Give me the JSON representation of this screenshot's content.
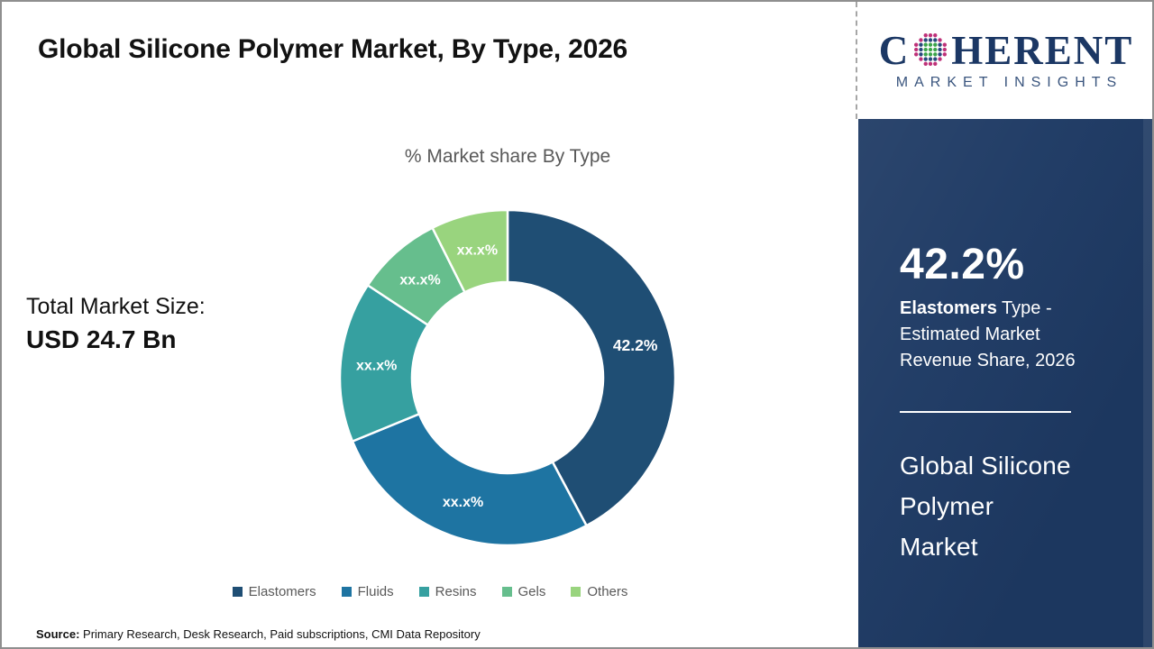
{
  "header": {
    "title": "Global Silicone Polymer Market, By Type, 2026"
  },
  "logo": {
    "name_first_letter": "C",
    "name_rest": "HERENT",
    "subtitle": "MARKET INSIGHTS",
    "navy": "#1b3764",
    "globe_dot_magenta": "#be3078",
    "globe_dot_green": "#3ba44a",
    "globe_dot_blue": "#27497c"
  },
  "chart_data": {
    "type": "pie",
    "subtype": "donut",
    "title": "% Market share By Type",
    "categories": [
      "Elastomers",
      "Fluids",
      "Resins",
      "Gels",
      "Others"
    ],
    "values": [
      42.2,
      26.6,
      15.5,
      8.3,
      7.4
    ],
    "slice_labels": [
      "42.2%",
      "xx.x%",
      "xx.x%",
      "xx.x%",
      "xx.x%"
    ],
    "colors": [
      "#1f4e74",
      "#1e74a2",
      "#36a0a0",
      "#66be8d",
      "#99d47e"
    ],
    "legend_position": "bottom",
    "start_angle_deg": 0,
    "direction": "clockwise",
    "label_color": "#ffffff"
  },
  "total_market": {
    "label": "Total Market Size:",
    "value": "USD 24.7 Bn"
  },
  "sidebar": {
    "background": "#1e3a64",
    "highlight_value": "42.2%",
    "desc_bold": "Elastomers",
    "desc_line1_rest": " Type -",
    "desc_line2": "Estimated Market",
    "desc_line3": "Revenue Share, 2026",
    "market_line1": "Global Silicone",
    "market_line2": "Polymer",
    "market_line3": "Market"
  },
  "source": {
    "label": "Source:",
    "text": " Primary Research, Desk Research, Paid subscriptions, CMI Data Repository"
  }
}
